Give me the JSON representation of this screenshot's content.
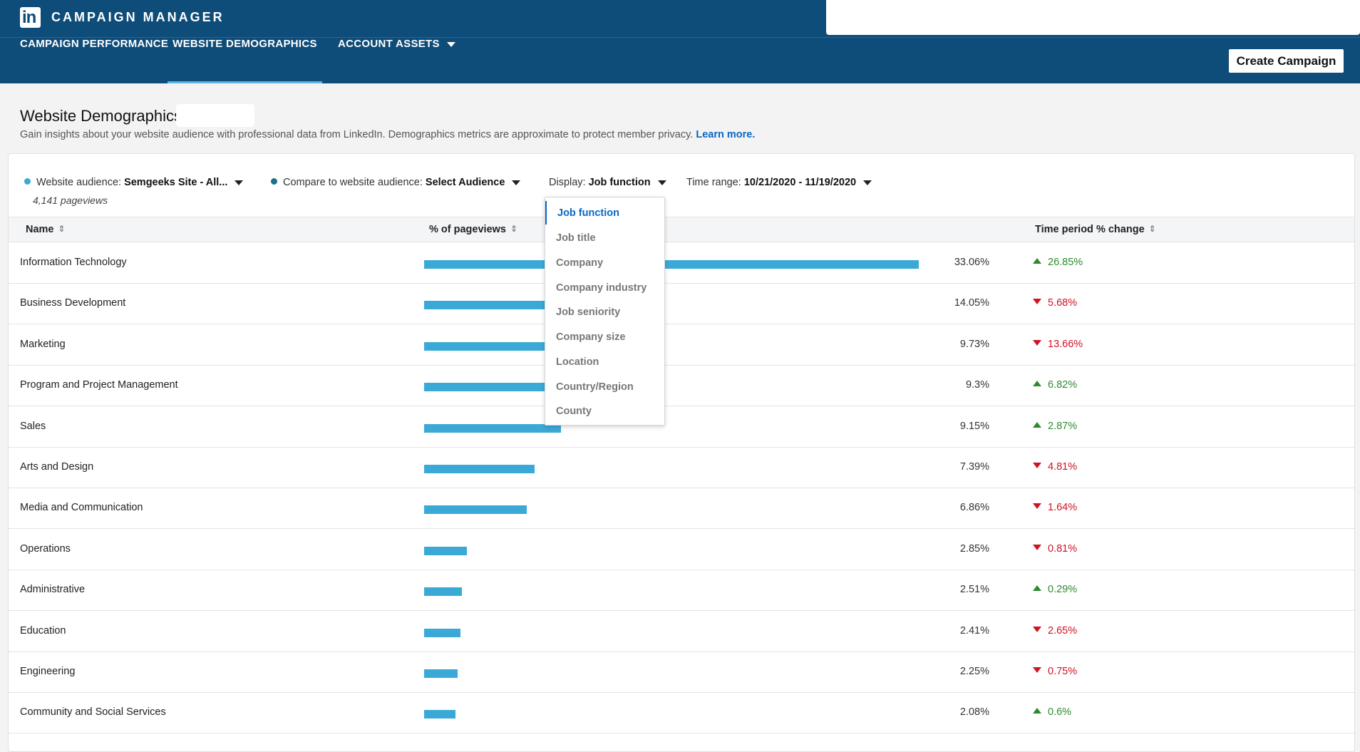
{
  "app": {
    "title": "CAMPAIGN MANAGER",
    "logo": "in"
  },
  "nav": {
    "tabs": [
      {
        "label": "CAMPAIGN PERFORMANCE"
      },
      {
        "label": "WEBSITE DEMOGRAPHICS"
      },
      {
        "label": "ACCOUNT ASSETS"
      }
    ],
    "active_tab": "WEBSITE DEMOGRAPHICS",
    "create_button": "Create Campaign"
  },
  "page": {
    "title": "Website Demographics:",
    "description": "Gain insights about your website audience with professional data from LinkedIn. Demographics metrics are approximate to protect member privacy.",
    "learn_more": "Learn more."
  },
  "filters": {
    "audience_label": "Website audience:",
    "audience_value": "Semgeeks Site - All...",
    "compare_label": "Compare to website audience:",
    "compare_value": "Select Audience",
    "display_label": "Display:",
    "display_value": "Job function",
    "time_label": "Time range:",
    "time_value": "10/21/2020 - 11/19/2020",
    "pageviews": "4,141 pageviews"
  },
  "table": {
    "headers": {
      "name": "Name",
      "pct": "% of pageviews",
      "change": "Time period % change"
    },
    "rows": [
      {
        "name": "Information Technology",
        "pct": "33.06%",
        "share": 33.06,
        "change": "26.85%",
        "dir": "up"
      },
      {
        "name": "Business Development",
        "pct": "14.05%",
        "share": 14.05,
        "change": "5.68%",
        "dir": "down"
      },
      {
        "name": "Marketing",
        "pct": "9.73%",
        "share": 9.73,
        "change": "13.66%",
        "dir": "down"
      },
      {
        "name": "Program and Project Management",
        "pct": "9.3%",
        "share": 9.3,
        "change": "6.82%",
        "dir": "up"
      },
      {
        "name": "Sales",
        "pct": "9.15%",
        "share": 9.15,
        "change": "2.87%",
        "dir": "up"
      },
      {
        "name": "Arts and Design",
        "pct": "7.39%",
        "share": 7.39,
        "change": "4.81%",
        "dir": "down"
      },
      {
        "name": "Media and Communication",
        "pct": "6.86%",
        "share": 6.86,
        "change": "1.64%",
        "dir": "down"
      },
      {
        "name": "Operations",
        "pct": "2.85%",
        "share": 2.85,
        "change": "0.81%",
        "dir": "down"
      },
      {
        "name": "Administrative",
        "pct": "2.51%",
        "share": 2.51,
        "change": "0.29%",
        "dir": "up"
      },
      {
        "name": "Education",
        "pct": "2.41%",
        "share": 2.41,
        "change": "2.65%",
        "dir": "down"
      },
      {
        "name": "Engineering",
        "pct": "2.25%",
        "share": 2.25,
        "change": "0.75%",
        "dir": "down"
      },
      {
        "name": "Community and Social Services",
        "pct": "2.08%",
        "share": 2.08,
        "change": "0.6%",
        "dir": "up"
      }
    ]
  },
  "dropdown": {
    "selected": "Job function",
    "options": [
      "Job function",
      "Job title",
      "Company",
      "Company industry",
      "Job seniority",
      "Company size",
      "Location",
      "Country/Region",
      "County"
    ]
  },
  "colors": {
    "header_bg": "#0e4c79",
    "accent": "#0a66c2",
    "bar": "#3aa9d6",
    "audience_dot": "#3aa9d6",
    "compare_dot": "#1b6f87",
    "up": "#2f8a2f",
    "down": "#d11124"
  },
  "icons": {
    "sort": "sort-icon",
    "caret": "caret-down-icon",
    "up": "arrow-up-icon",
    "down": "arrow-down-icon"
  }
}
